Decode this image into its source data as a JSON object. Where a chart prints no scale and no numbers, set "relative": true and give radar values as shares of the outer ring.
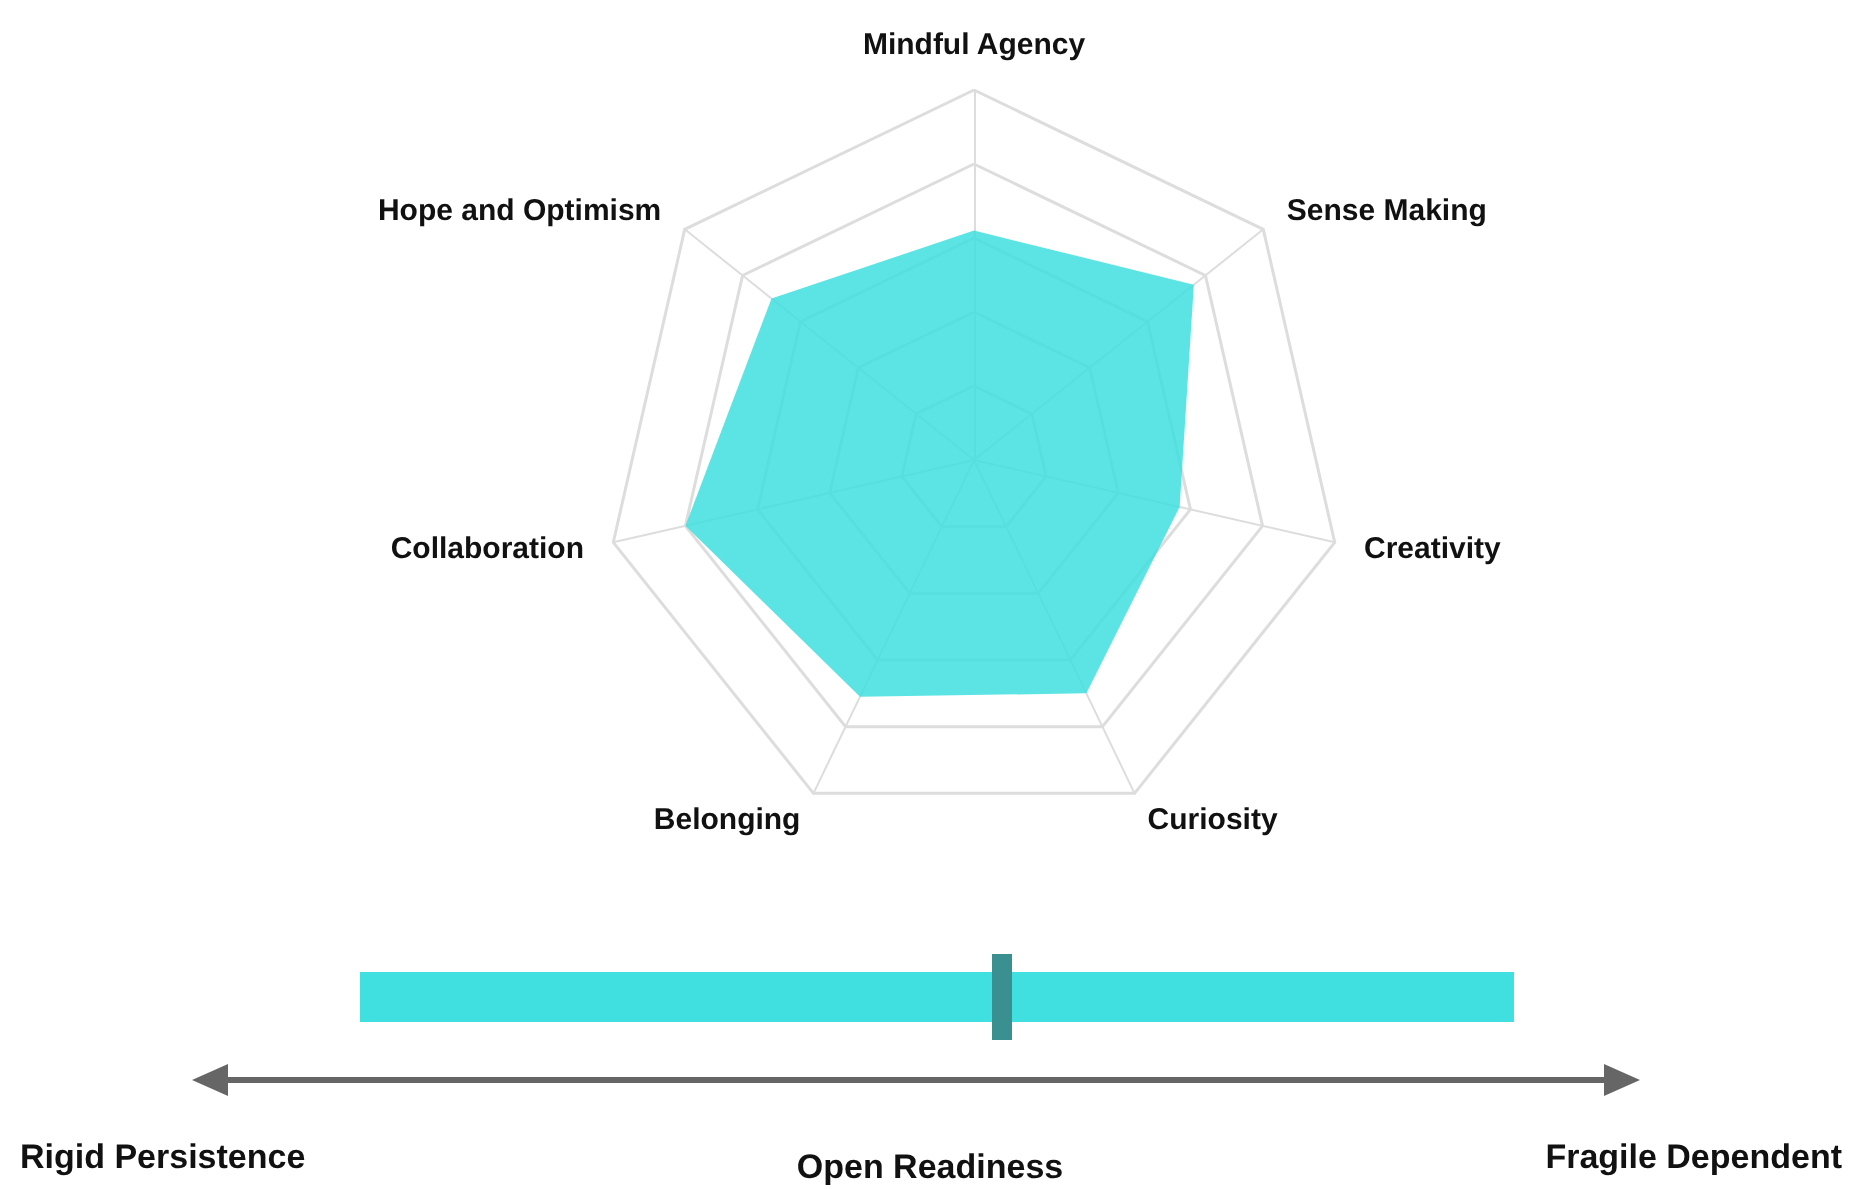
{
  "chart_data": {
    "type": "radar",
    "relative": true,
    "categories": [
      "Mindful Agency",
      "Sense Making",
      "Creativity",
      "Curiosity",
      "Belonging",
      "Collaboration",
      "Hope and Optimism"
    ],
    "series": [
      {
        "color": "#40dfdf",
        "values": [
          0.62,
          0.76,
          0.57,
          0.7,
          0.71,
          0.8,
          0.7
        ]
      }
    ],
    "annotations": [
      "Rigid Persistence",
      "Open Readiness",
      "Fragile Dependent"
    ]
  }
}
